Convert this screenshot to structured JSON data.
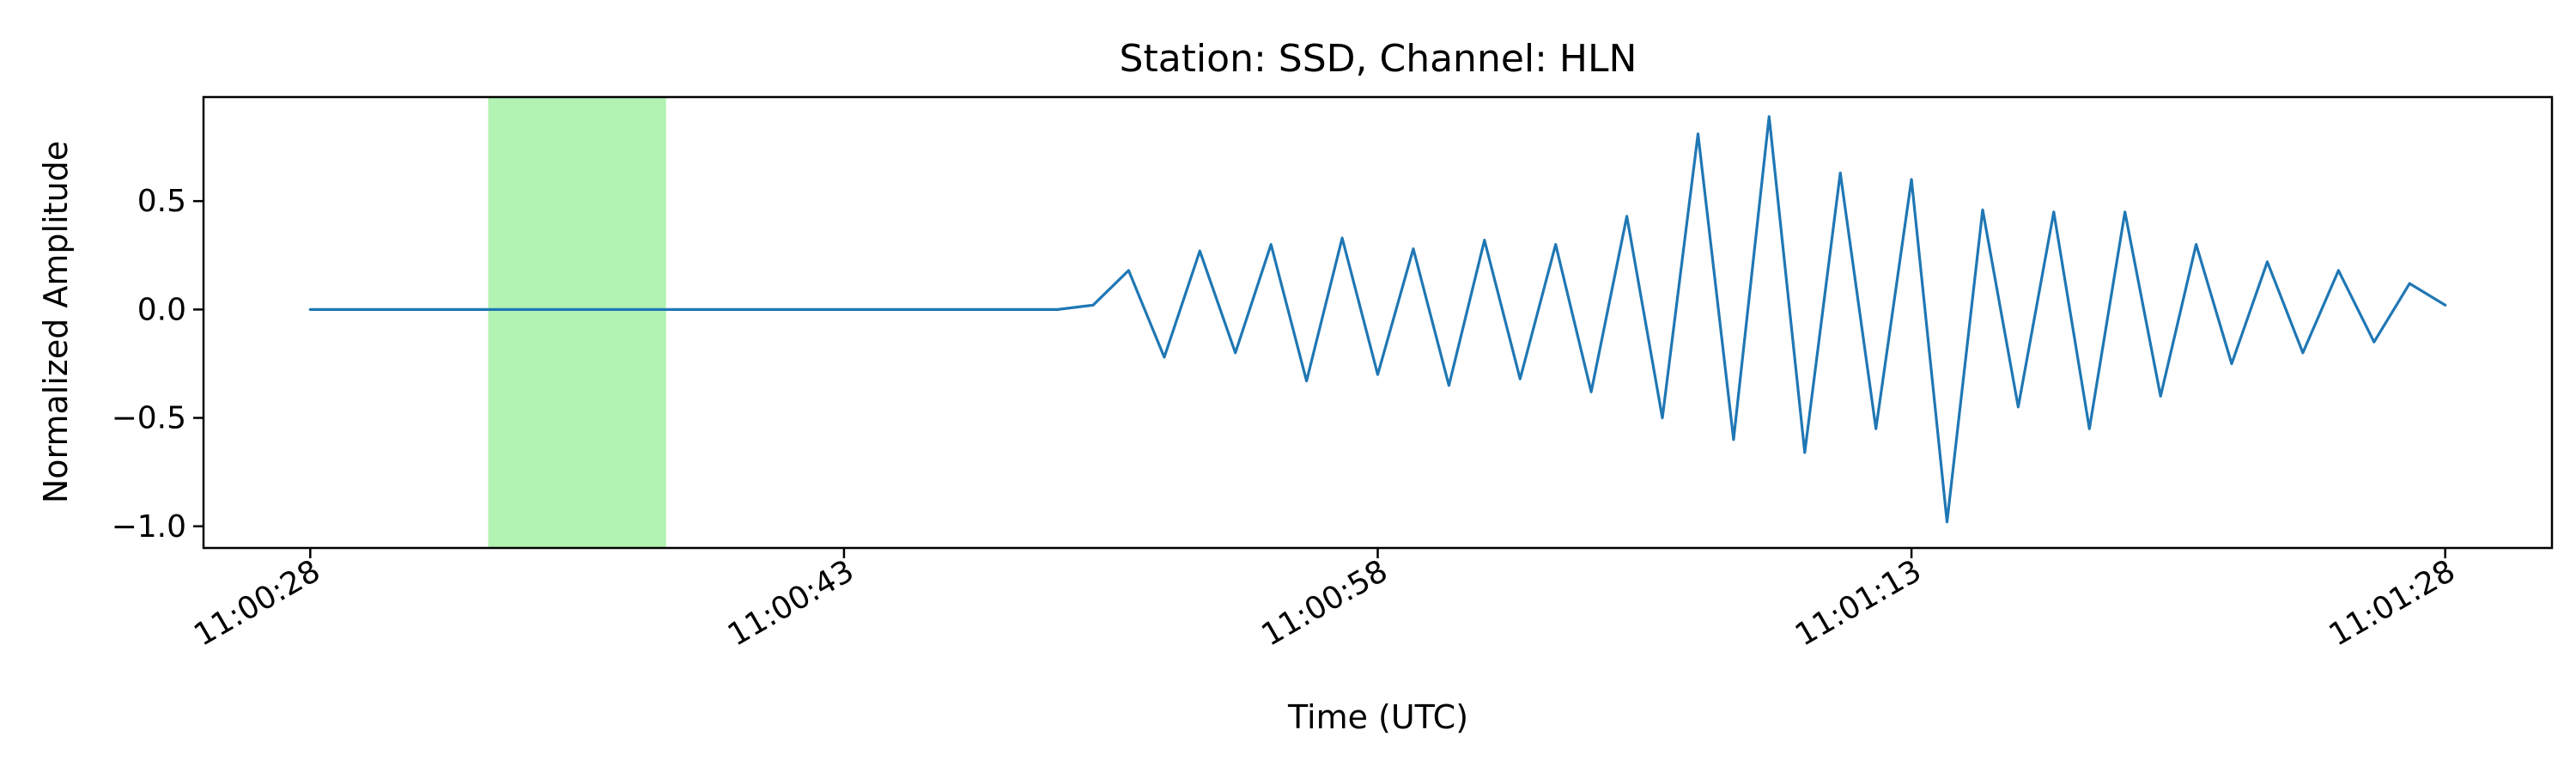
{
  "chart_data": {
    "type": "line",
    "title": "Station: SSD, Channel: HLN",
    "xlabel": "Time (UTC)",
    "ylabel": "Normalized Amplitude",
    "x_unit": "time of day (UTC)",
    "xlim": [
      "11:00:25",
      "11:01:31"
    ],
    "ylim": [
      -1.1,
      0.98
    ],
    "x_ticks": [
      "11:00:28",
      "11:00:43",
      "11:00:58",
      "11:01:13",
      "11:01:28"
    ],
    "y_ticks": [
      0.5,
      0.0,
      -0.5,
      -1.0
    ],
    "y_tick_labels": [
      "0.5",
      "0.0",
      "−0.5",
      "−1.0"
    ],
    "grid": false,
    "highlight": {
      "start": "11:00:33",
      "end": "11:00:38",
      "color": "#b2f2b2"
    },
    "colors": {
      "trace": "#1f77b4",
      "highlight": "#b2f2b2"
    },
    "series": [
      {
        "values": [
          {
            "x": "11:00:28",
            "y": 0.0
          },
          {
            "x": "11:00:49",
            "y": 0.0
          },
          {
            "x": "11:00:50",
            "y": 0.02
          },
          {
            "x": "11:00:51",
            "y": 0.18
          },
          {
            "x": "11:00:52",
            "y": -0.22
          },
          {
            "x": "11:00:53",
            "y": 0.27
          },
          {
            "x": "11:00:54",
            "y": -0.2
          },
          {
            "x": "11:00:55",
            "y": 0.3
          },
          {
            "x": "11:00:56",
            "y": -0.33
          },
          {
            "x": "11:00:57",
            "y": 0.33
          },
          {
            "x": "11:00:58",
            "y": -0.3
          },
          {
            "x": "11:00:59",
            "y": 0.28
          },
          {
            "x": "11:01:00",
            "y": -0.35
          },
          {
            "x": "11:01:01",
            "y": 0.32
          },
          {
            "x": "11:01:02",
            "y": -0.32
          },
          {
            "x": "11:01:03",
            "y": 0.3
          },
          {
            "x": "11:01:04",
            "y": -0.38
          },
          {
            "x": "11:01:05",
            "y": 0.43
          },
          {
            "x": "11:01:06",
            "y": -0.5
          },
          {
            "x": "11:01:07",
            "y": 0.81
          },
          {
            "x": "11:01:08",
            "y": -0.6
          },
          {
            "x": "11:01:09",
            "y": 0.89
          },
          {
            "x": "11:01:10",
            "y": -0.66
          },
          {
            "x": "11:01:11",
            "y": 0.63
          },
          {
            "x": "11:01:12",
            "y": -0.55
          },
          {
            "x": "11:01:13",
            "y": 0.6
          },
          {
            "x": "11:01:14",
            "y": -0.98
          },
          {
            "x": "11:01:15",
            "y": 0.46
          },
          {
            "x": "11:01:16",
            "y": -0.45
          },
          {
            "x": "11:01:17",
            "y": 0.45
          },
          {
            "x": "11:01:18",
            "y": -0.55
          },
          {
            "x": "11:01:19",
            "y": 0.45
          },
          {
            "x": "11:01:20",
            "y": -0.4
          },
          {
            "x": "11:01:21",
            "y": 0.3
          },
          {
            "x": "11:01:22",
            "y": -0.25
          },
          {
            "x": "11:01:23",
            "y": 0.22
          },
          {
            "x": "11:01:24",
            "y": -0.2
          },
          {
            "x": "11:01:25",
            "y": 0.18
          },
          {
            "x": "11:01:26",
            "y": -0.15
          },
          {
            "x": "11:01:27",
            "y": 0.12
          },
          {
            "x": "11:01:28",
            "y": 0.02
          }
        ]
      }
    ]
  }
}
